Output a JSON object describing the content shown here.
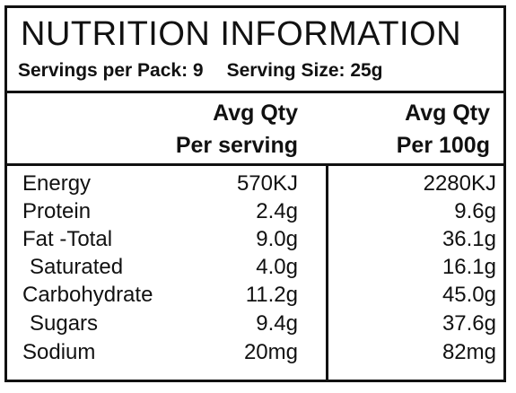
{
  "panel": {
    "title": "NUTRITION INFORMATION",
    "servings_per_pack": "Servings per Pack: 9",
    "serving_size": "Serving Size: 25g"
  },
  "columns": {
    "per_serving_line1": "Avg Qty",
    "per_serving_line2": "Per serving",
    "per_100g_line1": "Avg Qty",
    "per_100g_line2": "Per 100g"
  },
  "rows": [
    {
      "label": "Energy",
      "per_serving": "570KJ",
      "per_100g": "2280KJ"
    },
    {
      "label": "Protein",
      "per_serving": "2.4g",
      "per_100g": "9.6g"
    },
    {
      "label": "Fat -Total",
      "per_serving": "9.0g",
      "per_100g": "36.1g"
    },
    {
      "label": "Saturated",
      "per_serving": "4.0g",
      "per_100g": "16.1g"
    },
    {
      "label": "Carbohydrate",
      "per_serving": "11.2g",
      "per_100g": "45.0g"
    },
    {
      "label": "Sugars",
      "per_serving": "9.4g",
      "per_100g": "37.6g"
    },
    {
      "label": "Sodium",
      "per_serving": "20mg",
      "per_100g": "82mg"
    }
  ]
}
